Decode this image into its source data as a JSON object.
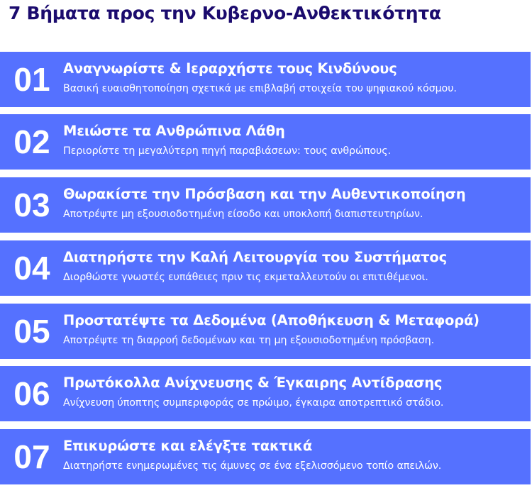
{
  "title": "7 Βήματα προς την Κυβερνο-Ανθεκτικότητα",
  "accent_color": "#5571ff",
  "title_color": "#1b0b6e",
  "steps": [
    {
      "number": "01",
      "heading": "Αναγνωρίστε & Ιεραρχήστε τους Κινδύνους",
      "description": "Βασική ευαισθητοποίηση σχετικά με επιβλαβή στοιχεία του ψηφιακού κόσμου."
    },
    {
      "number": "02",
      "heading": "Μειώστε τα Ανθρώπινα Λάθη",
      "description": "Περιορίστε τη μεγαλύτερη πηγή παραβιάσεων: τους ανθρώπους."
    },
    {
      "number": "03",
      "heading": "Θωρακίστε την Πρόσβαση και την Αυθεντικοποίηση",
      "description": "Αποτρέψτε μη εξουσιοδοτημένη είσοδο και υποκλοπή διαπιστευτηρίων."
    },
    {
      "number": "04",
      "heading": "Διατηρήστε την Καλή Λειτουργία του Συστήματος",
      "description": "Διορθώστε γνωστές ευπάθειες πριν τις εκμεταλλευτούν οι επιτιθέμενοι."
    },
    {
      "number": "05",
      "heading": "Προστατέψτε τα Δεδομένα (Αποθήκευση & Μεταφορά)",
      "description": "Αποτρέψτε τη διαρροή δεδομένων και τη μη εξουσιοδοτημένη πρόσβαση."
    },
    {
      "number": "06",
      "heading": "Πρωτόκολλα Ανίχνευσης & Έγκαιρης Αντίδρασης",
      "description": "Ανίχνευση ύποπτης συμπεριφοράς σε πρώιμο, έγκαιρα αποτρεπτικό στάδιο."
    },
    {
      "number": "07",
      "heading": "Επικυρώστε και ελέγξτε τακτικά",
      "description": "Διατηρήστε ενημερωμένες τις άμυνες σε ένα εξελισσόμενο τοπίο απειλών."
    }
  ]
}
